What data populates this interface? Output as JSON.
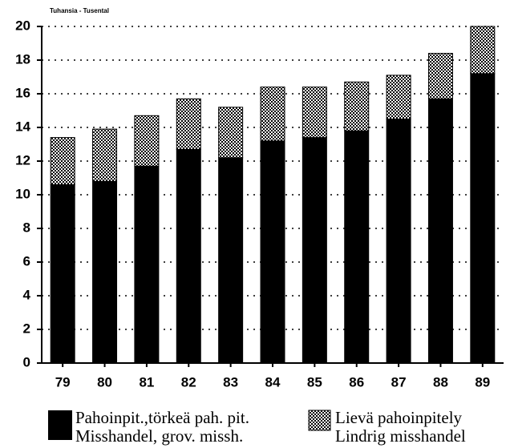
{
  "chart_data": {
    "type": "stacked_bar",
    "title": "Tuhansia - Tusental",
    "categories": [
      "79",
      "80",
      "81",
      "82",
      "83",
      "84",
      "85",
      "86",
      "87",
      "88",
      "89"
    ],
    "series": [
      {
        "name": "Pahoinpit.,törkeä pah. pit.",
        "name_sv": "Misshandel, grov. missh.",
        "color": "#000000",
        "values": [
          10.6,
          10.8,
          11.7,
          12.7,
          12.2,
          13.2,
          13.4,
          13.8,
          14.5,
          15.7,
          17.2
        ]
      },
      {
        "name": "Lievä pahoinpitely",
        "name_sv": "Lindrig misshandel",
        "color": "#a8a8a8",
        "values": [
          2.8,
          3.1,
          3.0,
          3.0,
          3.0,
          3.2,
          3.0,
          2.9,
          2.6,
          2.7,
          2.8
        ]
      }
    ],
    "ylim": [
      0,
      20
    ],
    "yticks": [
      0,
      2,
      4,
      6,
      8,
      10,
      12,
      14,
      16,
      18,
      20
    ],
    "grid": true
  }
}
